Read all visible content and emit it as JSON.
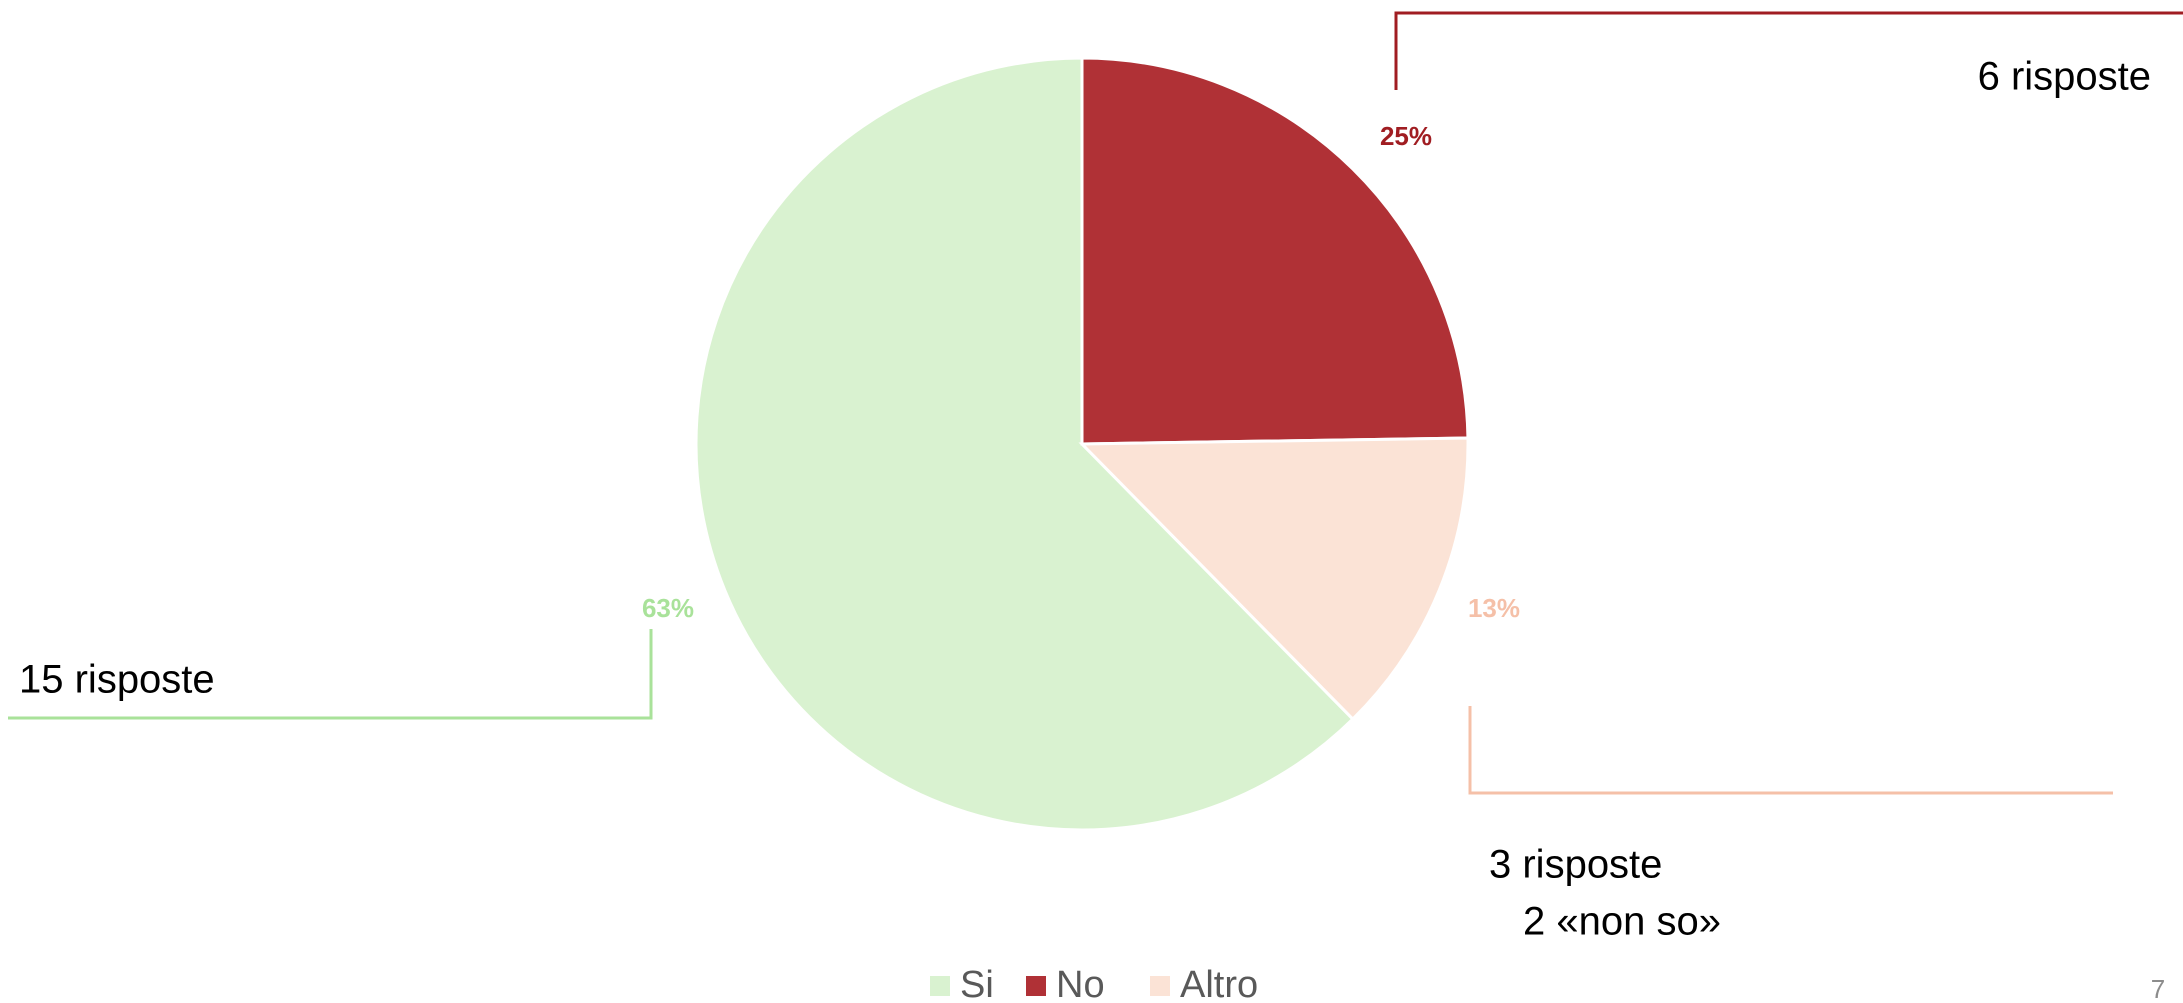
{
  "chart_data": {
    "type": "pie",
    "categories": [
      "Si",
      "No",
      "Altro"
    ],
    "values": [
      63,
      25,
      13
    ],
    "value_labels": [
      "63%",
      "25%",
      "13%"
    ],
    "colors": [
      "#d9f2d0",
      "#b03136",
      "#fbe3d6"
    ],
    "label_colors": [
      "#a9e29a",
      "#a01d22",
      "#f5c0a8"
    ],
    "legend": "bottom",
    "annotations": [
      "15 risposte",
      "6 risposte",
      "3 risposte",
      "2 «non so»"
    ],
    "page_number": "7"
  }
}
